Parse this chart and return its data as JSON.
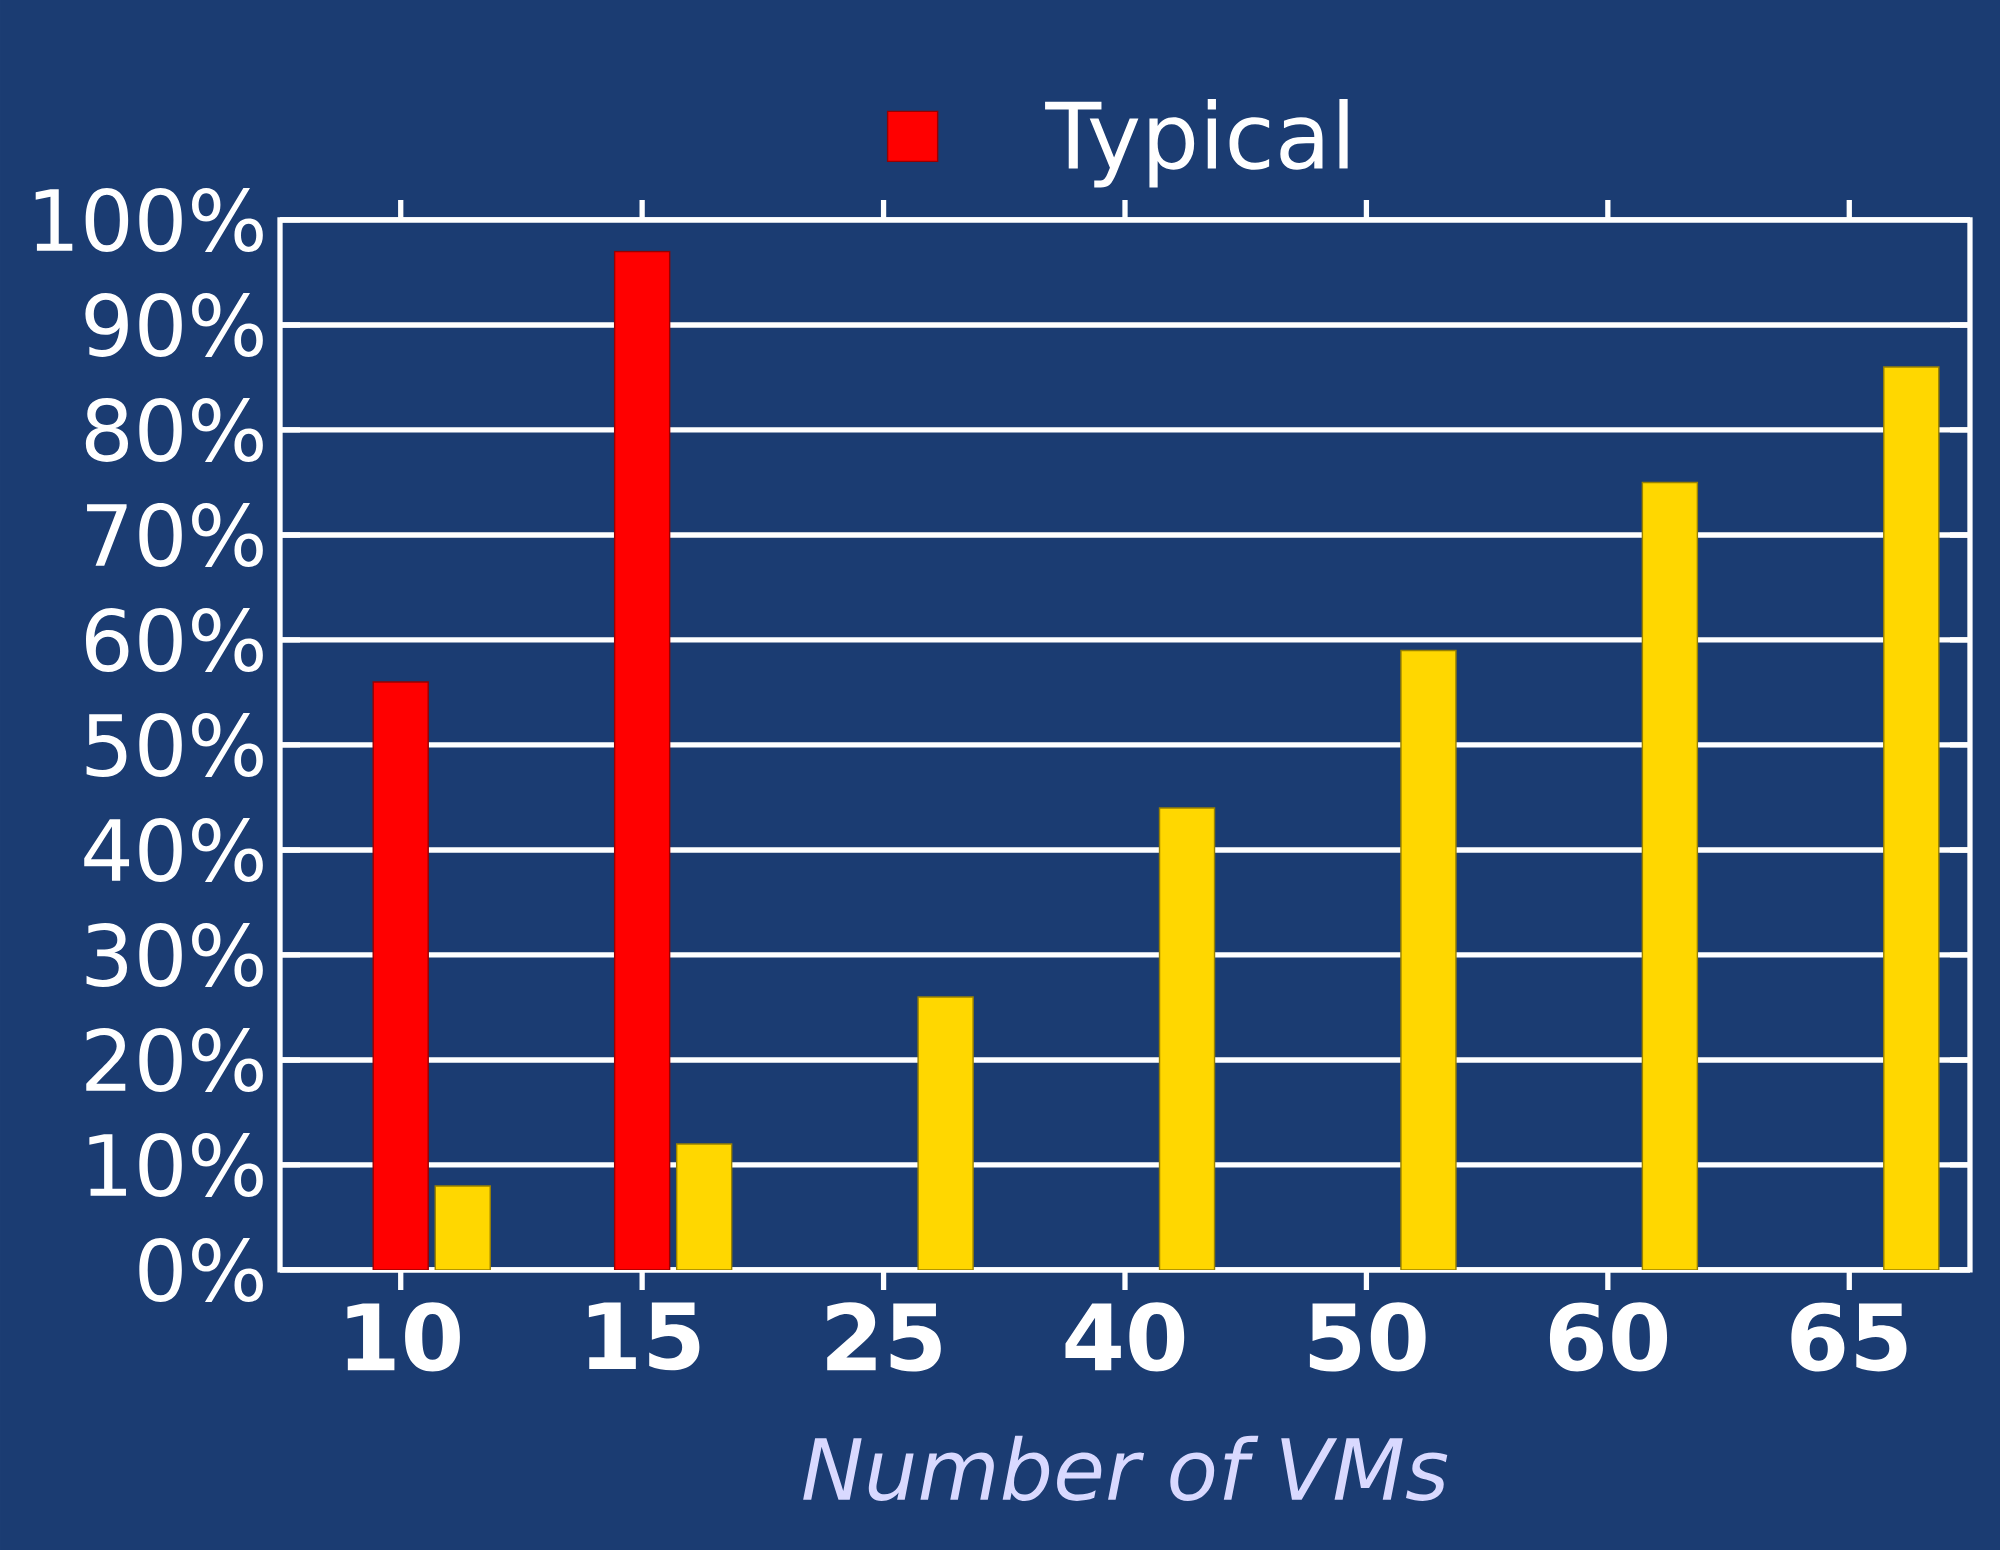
{
  "chart_data": {
    "type": "bar",
    "xlabel": "Number of VMs",
    "categories": [
      "10",
      "15",
      "25",
      "40",
      "50",
      "60",
      "65"
    ],
    "series": [
      {
        "name": "Typical",
        "color": "#ff0000",
        "values": [
          56,
          97,
          null,
          null,
          null,
          null,
          null
        ]
      },
      {
        "color": "#ffd700",
        "values": [
          8,
          12,
          26,
          44,
          59,
          75,
          86
        ]
      }
    ],
    "ylim": [
      0,
      100
    ],
    "yticks": [
      {
        "value": 0,
        "label": "0%"
      },
      {
        "value": 10,
        "label": "10%"
      },
      {
        "value": 20,
        "label": "20%"
      },
      {
        "value": 30,
        "label": "30%"
      },
      {
        "value": 40,
        "label": "40%"
      },
      {
        "value": 50,
        "label": "50%"
      },
      {
        "value": 60,
        "label": "60%"
      },
      {
        "value": 70,
        "label": "70%"
      },
      {
        "value": 80,
        "label": "80%"
      },
      {
        "value": 90,
        "label": "90%"
      },
      {
        "value": 100,
        "label": "100%"
      }
    ],
    "grid": "y",
    "legend": "top"
  }
}
